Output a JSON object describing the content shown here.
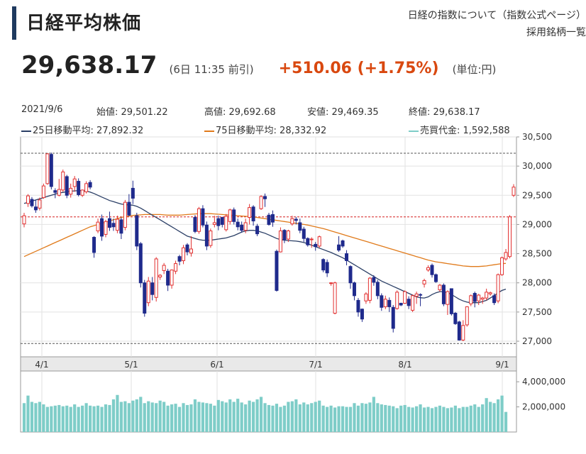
{
  "header": {
    "title": "日経平均株価",
    "links": [
      "日経の指数について（指数公式ページ）",
      "採用銘柄一覧"
    ],
    "accent_color": "#1f3a5f"
  },
  "quote": {
    "price": "29,638.17",
    "time": "(6日 11:35 前引)",
    "change": "+510.06 (+1.75%)",
    "unit": "(単位:円)",
    "change_color": "#d9480f"
  },
  "ohlc": {
    "date": "2021/9/6",
    "open": "始値: 29,501.22",
    "high": "高値: 29,692.68",
    "low": "安値: 29,469.35",
    "close": "終値: 29,638.17"
  },
  "legend": {
    "ma25": "25日移動平均: 27,892.32",
    "ma75": "75日移動平均: 28,332.92",
    "volume": "売買代金: 1,592,588"
  },
  "colors": {
    "up": "#e23030",
    "down": "#1f2a8c",
    "ma25": "#2b3f66",
    "ma75": "#e07a1a",
    "volume": "#7ecdc8",
    "close_line": "#d62020"
  },
  "chart_data": {
    "type": "candlestick",
    "price_axis": {
      "min": 27000,
      "max": 30500,
      "ticks": [
        "27,000",
        "27,500",
        "28,000",
        "28,500",
        "29,000",
        "29,500",
        "30,000",
        "30,500"
      ]
    },
    "volume_axis": {
      "ticks": [
        "2,000,000",
        "4,000,000"
      ]
    },
    "month_labels": [
      "4/1",
      "5/1",
      "6/1",
      "7/1",
      "8/1",
      "9/1"
    ],
    "reference_high": 30220,
    "reference_low": 26960,
    "current_close": 29130,
    "candles": [
      [
        29010,
        29150,
        28950,
        29200
      ],
      [
        29360,
        29490,
        29300,
        29520
      ],
      [
        29430,
        29320,
        29290,
        29470
      ],
      [
        29300,
        29250,
        29200,
        29420
      ],
      [
        29280,
        29420,
        29240,
        29460
      ],
      [
        29460,
        29660,
        29440,
        29700
      ],
      [
        29700,
        30210,
        29680,
        30220
      ],
      [
        30200,
        29650,
        29600,
        30230
      ],
      [
        29580,
        29550,
        29450,
        29620
      ],
      [
        29500,
        29600,
        29480,
        29780
      ],
      [
        29590,
        29900,
        29560,
        29940
      ],
      [
        29820,
        29500,
        29450,
        29850
      ],
      [
        29520,
        29620,
        29460,
        29700
      ],
      [
        29650,
        29780,
        29560,
        29830
      ],
      [
        29740,
        29510,
        29480,
        29790
      ],
      [
        29500,
        29590,
        29470,
        29600
      ],
      [
        29560,
        29700,
        29530,
        29740
      ],
      [
        29720,
        29640,
        29600,
        29760
      ],
      [
        28780,
        28520,
        28430,
        28800
      ],
      [
        28890,
        29040,
        28850,
        29100
      ],
      [
        29100,
        28800,
        28720,
        29170
      ],
      [
        28830,
        29050,
        28780,
        29080
      ],
      [
        29100,
        28950,
        28890,
        29220
      ],
      [
        29020,
        28960,
        28890,
        29100
      ],
      [
        28900,
        29090,
        28850,
        29150
      ],
      [
        29080,
        28850,
        28750,
        29120
      ],
      [
        28950,
        29380,
        28900,
        29420
      ],
      [
        29380,
        29160,
        29140,
        29520
      ],
      [
        29620,
        29450,
        29350,
        29750
      ],
      [
        29150,
        28630,
        28560,
        29200
      ],
      [
        28670,
        28000,
        27920,
        28700
      ],
      [
        28000,
        27480,
        27420,
        28050
      ],
      [
        27660,
        28030,
        27600,
        28100
      ],
      [
        28000,
        27800,
        27700,
        28100
      ],
      [
        27750,
        28410,
        27680,
        28440
      ],
      [
        28100,
        28130,
        28050,
        28150
      ],
      [
        28210,
        28300,
        28150,
        28340
      ],
      [
        28200,
        27960,
        27860,
        28240
      ],
      [
        27960,
        28220,
        27900,
        28230
      ],
      [
        28200,
        28330,
        28150,
        28380
      ],
      [
        28450,
        28370,
        28300,
        28480
      ],
      [
        28380,
        28600,
        28320,
        28650
      ],
      [
        28650,
        28530,
        28470,
        28680
      ],
      [
        28510,
        28580,
        28450,
        28800
      ],
      [
        29120,
        28880,
        28850,
        29160
      ],
      [
        28880,
        29270,
        28840,
        29300
      ],
      [
        29270,
        28990,
        28950,
        29330
      ],
      [
        28990,
        28630,
        28560,
        29050
      ],
      [
        28640,
        28890,
        28600,
        28930
      ],
      [
        29000,
        29030,
        28950,
        29150
      ],
      [
        29100,
        28980,
        28900,
        29150
      ],
      [
        29120,
        29000,
        28950,
        29130
      ],
      [
        28910,
        29140,
        28880,
        29180
      ],
      [
        29050,
        29250,
        29000,
        29270
      ],
      [
        29250,
        29050,
        29000,
        29290
      ],
      [
        29040,
        28960,
        28900,
        29100
      ],
      [
        28990,
        28900,
        28860,
        29050
      ],
      [
        28900,
        29030,
        28850,
        29100
      ],
      [
        29120,
        29290,
        29000,
        29350
      ],
      [
        29300,
        29060,
        28980,
        29330
      ],
      [
        28970,
        28840,
        28800,
        29010
      ],
      [
        29270,
        29480,
        29250,
        29500
      ],
      [
        29480,
        29440,
        29300,
        29530
      ],
      [
        29160,
        29000,
        28980,
        29200
      ],
      [
        29170,
        29040,
        28960,
        29240
      ],
      [
        28540,
        27870,
        27850,
        28570
      ],
      [
        28530,
        28890,
        28520,
        28950
      ],
      [
        28900,
        28740,
        28680,
        28920
      ],
      [
        28750,
        28890,
        28700,
        28910
      ],
      [
        29010,
        29100,
        28980,
        29150
      ],
      [
        29090,
        29070,
        29000,
        29130
      ],
      [
        29030,
        28900,
        28850,
        29100
      ],
      [
        28920,
        28760,
        28700,
        28960
      ],
      [
        28760,
        28650,
        28620,
        28780
      ],
      [
        28740,
        28750,
        28600,
        28780
      ],
      [
        28660,
        28620,
        28550,
        28700
      ],
      [
        28630,
        28790,
        28600,
        28810
      ],
      [
        28400,
        28220,
        28180,
        28420
      ],
      [
        28350,
        28170,
        28100,
        28400
      ],
      [
        28000,
        28000,
        27950,
        28010
      ],
      [
        27480,
        28000,
        27460,
        28020
      ],
      [
        28650,
        28560,
        28530,
        28800
      ],
      [
        28720,
        28630,
        28600,
        28740
      ],
      [
        28500,
        28380,
        28300,
        28560
      ],
      [
        28280,
        28000,
        27900,
        28300
      ],
      [
        28000,
        27780,
        27700,
        28020
      ],
      [
        27700,
        27500,
        27420,
        27740
      ],
      [
        27550,
        27380,
        27330,
        27560
      ],
      [
        27690,
        27810,
        27640,
        27840
      ],
      [
        27700,
        28080,
        27650,
        28100
      ],
      [
        28090,
        28010,
        27950,
        28130
      ],
      [
        28010,
        27780,
        27720,
        28050
      ],
      [
        27780,
        27580,
        27520,
        27820
      ],
      [
        27590,
        27720,
        27550,
        27780
      ],
      [
        27700,
        27590,
        27500,
        27750
      ],
      [
        27580,
        27220,
        27150,
        27620
      ],
      [
        27560,
        27840,
        27540,
        27870
      ],
      [
        27650,
        27620,
        27600,
        27660
      ],
      [
        27650,
        27850,
        27640,
        27870
      ],
      [
        27720,
        27610,
        27550,
        27770
      ],
      [
        27530,
        27780,
        27500,
        27800
      ],
      [
        27770,
        27810,
        27640,
        27850
      ],
      [
        27800,
        27790,
        27600,
        27820
      ],
      [
        27980,
        28040,
        27920,
        28070
      ],
      [
        28220,
        28260,
        28190,
        28300
      ],
      [
        28300,
        28140,
        28090,
        28330
      ],
      [
        28140,
        28020,
        28000,
        28160
      ],
      [
        27880,
        27960,
        27850,
        27980
      ],
      [
        27960,
        27640,
        27600,
        27990
      ],
      [
        27630,
        27850,
        27450,
        27870
      ],
      [
        27900,
        27470,
        27440,
        27900
      ],
      [
        27480,
        27300,
        27280,
        27500
      ],
      [
        27330,
        27020,
        27010,
        27350
      ],
      [
        27020,
        27270,
        27000,
        27360
      ],
      [
        27280,
        27590,
        27250,
        27600
      ],
      [
        27640,
        27780,
        27600,
        27800
      ],
      [
        27820,
        27680,
        27580,
        27850
      ],
      [
        27690,
        27790,
        27620,
        27810
      ],
      [
        27720,
        27740,
        27640,
        27760
      ],
      [
        27740,
        27840,
        27700,
        27900
      ],
      [
        27810,
        27830,
        27780,
        27850
      ],
      [
        27780,
        27660,
        27620,
        27820
      ],
      [
        27690,
        28140,
        27650,
        28160
      ],
      [
        28140,
        28430,
        28120,
        28450
      ],
      [
        28410,
        28520,
        28380,
        28580
      ],
      [
        28450,
        29130,
        28420,
        29160
      ],
      [
        29500,
        29640,
        29470,
        29690
      ]
    ],
    "ma25": [
      29360,
      29380,
      29400,
      29420,
      29440,
      29460,
      29480,
      29500,
      29520,
      29540,
      29550,
      29560,
      29570,
      29575,
      29580,
      29580,
      29570,
      29555,
      29530,
      29500,
      29470,
      29440,
      29410,
      29390,
      29370,
      29350,
      29340,
      29335,
      29330,
      29310,
      29280,
      29240,
      29200,
      29160,
      29120,
      29080,
      29040,
      29000,
      28960,
      28920,
      28880,
      28840,
      28800,
      28780,
      28760,
      28740,
      28730,
      28730,
      28730,
      28740,
      28750,
      28760,
      28770,
      28790,
      28810,
      28840,
      28870,
      28890,
      28900,
      28900,
      28890,
      28870,
      28850,
      28820,
      28790,
      28760,
      28740,
      28730,
      28725,
      28720,
      28715,
      28705,
      28690,
      28670,
      28645,
      28620,
      28595,
      28570,
      28545,
      28520,
      28490,
      28460,
      28430,
      28390,
      28350,
      28310,
      28270,
      28230,
      28190,
      28150,
      28110,
      28070,
      28030,
      28000,
      27970,
      27940,
      27910,
      27880,
      27850,
      27820,
      27790,
      27760,
      27745,
      27740,
      27760,
      27800,
      27830,
      27850,
      27850,
      27830,
      27800,
      27760,
      27720,
      27690,
      27670,
      27660,
      27660,
      27660,
      27680,
      27700,
      27740,
      27780,
      27830,
      27870,
      27892
    ],
    "ma75": [
      28450,
      28480,
      28510,
      28540,
      28570,
      28600,
      28630,
      28660,
      28690,
      28720,
      28750,
      28780,
      28810,
      28840,
      28870,
      28900,
      28930,
      28960,
      28980,
      29000,
      29020,
      29040,
      29060,
      29080,
      29100,
      29120,
      29135,
      29145,
      29155,
      29160,
      29165,
      29170,
      29170,
      29170,
      29170,
      29170,
      29165,
      29160,
      29160,
      29160,
      29160,
      29165,
      29170,
      29175,
      29180,
      29185,
      29185,
      29185,
      29185,
      29180,
      29175,
      29170,
      29165,
      29160,
      29155,
      29150,
      29145,
      29140,
      29135,
      29130,
      29120,
      29110,
      29100,
      29090,
      29080,
      29070,
      29060,
      29050,
      29040,
      29030,
      29020,
      29010,
      29000,
      28990,
      28975,
      28960,
      28945,
      28930,
      28910,
      28890,
      28870,
      28850,
      28830,
      28810,
      28790,
      28770,
      28750,
      28730,
      28710,
      28690,
      28670,
      28650,
      28630,
      28610,
      28590,
      28570,
      28550,
      28530,
      28510,
      28490,
      28470,
      28450,
      28430,
      28410,
      28390,
      28375,
      28360,
      28350,
      28340,
      28330,
      28320,
      28310,
      28300,
      28290,
      28285,
      28280,
      28280,
      28280,
      28285,
      28290,
      28300,
      28310,
      28320,
      28330,
      28333
    ],
    "volume": [
      2300000,
      2900000,
      2400000,
      2300000,
      2400000,
      2200000,
      2000000,
      2050000,
      2100000,
      2150000,
      2050000,
      2100000,
      2000000,
      2200000,
      2000000,
      2100000,
      2300000,
      2100000,
      2050000,
      2100000,
      2000000,
      2200000,
      2150000,
      2600000,
      2950000,
      2400000,
      2450000,
      2300000,
      2500000,
      2600000,
      2800000,
      2300000,
      2450000,
      2350000,
      2300000,
      2500000,
      2400000,
      2100000,
      2200000,
      2250000,
      2000000,
      2300000,
      2150000,
      2200000,
      2600000,
      2400000,
      2350000,
      2300000,
      2250000,
      2100000,
      2550000,
      2450000,
      2350000,
      2600000,
      2400000,
      2650000,
      2350000,
      2200000,
      2500000,
      2400000,
      2600000,
      2800000,
      2300000,
      2150000,
      2100000,
      2250000,
      2000000,
      2100000,
      2400000,
      2450000,
      2600000,
      2200000,
      2350000,
      2200000,
      2300000,
      2400000,
      2500000,
      2100000,
      2000000,
      2100000,
      1950000,
      2050000,
      2050000,
      2000000,
      2000000,
      2300000,
      2100000,
      2300000,
      2250000,
      2350000,
      2800000,
      2300000,
      2200000,
      2150000,
      2100000,
      2050000,
      1900000,
      2100000,
      2150000,
      2000000,
      1950000,
      2050000,
      2200000,
      1950000,
      2000000,
      1900000,
      2000000,
      2100000,
      2000000,
      1900000,
      1950000,
      2100000,
      1900000,
      2000000,
      2000000,
      2100000,
      2200000,
      2000000,
      2200000,
      2700000,
      2400000,
      2300000,
      2600000,
      2900000,
      1600000
    ]
  }
}
